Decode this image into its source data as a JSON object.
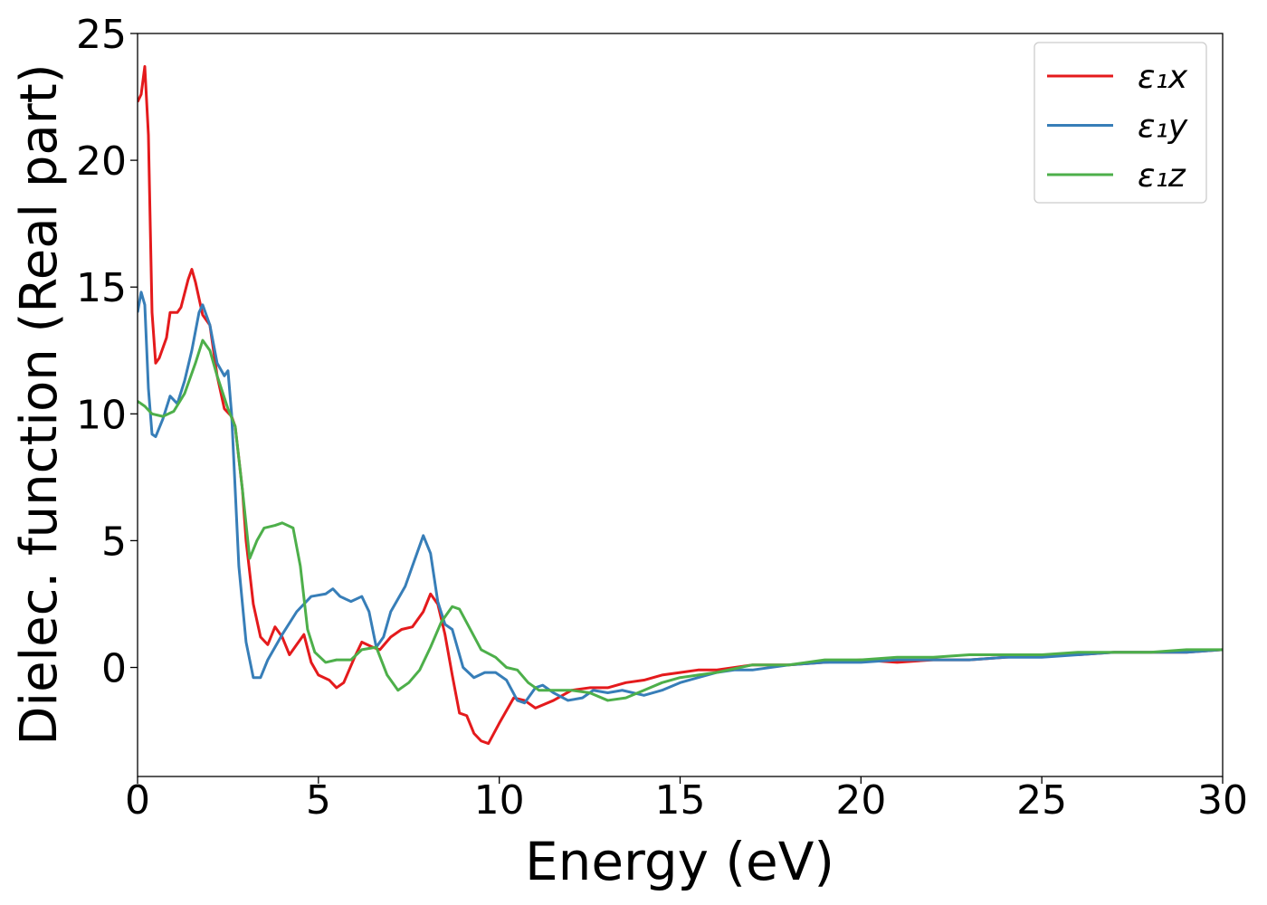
{
  "chart_data": {
    "type": "line",
    "xlabel": "Energy (eV)",
    "ylabel": "Dielec. function (Real part)",
    "xlim": [
      0,
      30
    ],
    "xticks": [
      0,
      5,
      10,
      15,
      20,
      25,
      30
    ],
    "ylim": [
      -4.3,
      25
    ],
    "yticks": [
      0,
      5,
      10,
      15,
      20,
      25
    ],
    "grid": false,
    "legend": "upper right",
    "series": [
      {
        "name": "ε₁x",
        "color": "#e41a1c",
        "x": [
          0,
          0.1,
          0.2,
          0.3,
          0.4,
          0.5,
          0.6,
          0.8,
          0.9,
          1.1,
          1.2,
          1.4,
          1.5,
          1.6,
          1.8,
          2.0,
          2.2,
          2.4,
          2.6,
          2.7,
          2.9,
          3.0,
          3.2,
          3.4,
          3.6,
          3.8,
          4.0,
          4.2,
          4.4,
          4.6,
          4.8,
          5.0,
          5.3,
          5.5,
          5.7,
          6.0,
          6.2,
          6.5,
          6.7,
          7.0,
          7.3,
          7.6,
          7.9,
          8.1,
          8.3,
          8.5,
          8.7,
          8.9,
          9.1,
          9.3,
          9.5,
          9.7,
          10.0,
          10.4,
          10.7,
          11.0,
          11.5,
          12,
          12.5,
          13,
          13.5,
          14,
          14.5,
          15,
          15.5,
          16,
          17,
          18,
          19,
          20,
          21,
          22,
          23,
          24,
          25,
          26,
          27,
          28,
          29,
          30
        ],
        "values": [
          22.3,
          22.6,
          23.7,
          21,
          14,
          12.0,
          12.2,
          13,
          14,
          14,
          14.2,
          15.3,
          15.7,
          15.2,
          13.9,
          13.5,
          11.5,
          10.2,
          9.9,
          9.5,
          7,
          5,
          2.5,
          1.2,
          0.9,
          1.6,
          1.2,
          0.5,
          0.9,
          1.3,
          0.2,
          -0.3,
          -0.5,
          -0.8,
          -0.6,
          0.4,
          1.0,
          0.8,
          0.7,
          1.2,
          1.5,
          1.6,
          2.2,
          2.9,
          2.5,
          1.3,
          -0.3,
          -1.8,
          -1.9,
          -2.6,
          -2.9,
          -3.0,
          -2.2,
          -1.2,
          -1.3,
          -1.6,
          -1.3,
          -0.9,
          -0.8,
          -0.8,
          -0.6,
          -0.5,
          -0.3,
          -0.2,
          -0.1,
          -0.1,
          0.1,
          0.1,
          0.2,
          0.3,
          0.2,
          0.3,
          0.3,
          0.4,
          0.5,
          0.5,
          0.6,
          0.6,
          0.6,
          0.7
        ]
      },
      {
        "name": "ε₁y",
        "color": "#377eb8",
        "x": [
          0,
          0.1,
          0.2,
          0.3,
          0.4,
          0.5,
          0.7,
          0.9,
          1.1,
          1.3,
          1.5,
          1.7,
          1.8,
          2.0,
          2.2,
          2.4,
          2.5,
          2.6,
          2.7,
          2.8,
          3.0,
          3.2,
          3.4,
          3.6,
          4.0,
          4.4,
          4.8,
          5.2,
          5.4,
          5.6,
          5.9,
          6.2,
          6.4,
          6.6,
          6.8,
          7.0,
          7.4,
          7.6,
          7.9,
          8.1,
          8.3,
          8.5,
          8.7,
          9.0,
          9.3,
          9.6,
          9.9,
          10.2,
          10.5,
          10.7,
          11.0,
          11.2,
          11.5,
          11.9,
          12.3,
          12.6,
          13,
          13.4,
          14,
          14.5,
          15,
          15.5,
          16,
          16.5,
          17,
          18,
          19,
          20,
          21,
          22,
          23,
          24,
          25,
          26,
          27,
          28,
          29,
          30
        ],
        "values": [
          14,
          14.8,
          14.3,
          11,
          9.2,
          9.1,
          9.8,
          10.7,
          10.4,
          11.3,
          12.5,
          14.0,
          14.3,
          13.5,
          12,
          11.5,
          11.7,
          10,
          7,
          4,
          1.0,
          -0.4,
          -0.4,
          0.3,
          1.3,
          2.2,
          2.8,
          2.9,
          3.1,
          2.8,
          2.6,
          2.8,
          2.2,
          0.8,
          1.2,
          2.2,
          3.2,
          4.0,
          5.2,
          4.5,
          2.6,
          1.7,
          1.5,
          0.0,
          -0.4,
          -0.2,
          -0.2,
          -0.5,
          -1.3,
          -1.4,
          -0.8,
          -0.7,
          -1.0,
          -1.3,
          -1.2,
          -0.9,
          -1.0,
          -0.9,
          -1.1,
          -0.9,
          -0.6,
          -0.4,
          -0.2,
          -0.1,
          -0.1,
          0.1,
          0.2,
          0.2,
          0.3,
          0.3,
          0.3,
          0.4,
          0.4,
          0.5,
          0.6,
          0.6,
          0.6,
          0.7
        ]
      },
      {
        "name": "ε₁z",
        "color": "#4daf4a",
        "x": [
          0,
          0.2,
          0.4,
          0.7,
          1.0,
          1.3,
          1.6,
          1.8,
          2.0,
          2.2,
          2.5,
          2.7,
          2.9,
          3.1,
          3.3,
          3.5,
          3.8,
          4.0,
          4.3,
          4.5,
          4.7,
          4.9,
          5.2,
          5.5,
          5.9,
          6.2,
          6.6,
          6.9,
          7.2,
          7.5,
          7.8,
          8.1,
          8.4,
          8.7,
          8.9,
          9.2,
          9.5,
          9.9,
          10.2,
          10.5,
          10.8,
          11.1,
          11.5,
          12,
          12.5,
          13,
          13.5,
          14,
          14.5,
          15,
          15.5,
          16,
          17,
          18,
          19,
          20,
          21,
          22,
          23,
          24,
          25,
          26,
          27,
          28,
          29,
          30
        ],
        "values": [
          10.5,
          10.3,
          10.0,
          9.9,
          10.1,
          10.8,
          12.0,
          12.9,
          12.5,
          11.5,
          10.2,
          9.5,
          7.0,
          4.3,
          5.0,
          5.5,
          5.6,
          5.7,
          5.5,
          4.0,
          1.5,
          0.6,
          0.2,
          0.3,
          0.3,
          0.7,
          0.8,
          -0.3,
          -0.9,
          -0.6,
          -0.1,
          0.8,
          1.8,
          2.4,
          2.3,
          1.5,
          0.7,
          0.4,
          0.0,
          -0.1,
          -0.6,
          -0.9,
          -0.9,
          -0.9,
          -1.0,
          -1.3,
          -1.2,
          -0.9,
          -0.6,
          -0.4,
          -0.3,
          -0.2,
          0.1,
          0.1,
          0.3,
          0.3,
          0.4,
          0.4,
          0.5,
          0.5,
          0.5,
          0.6,
          0.6,
          0.6,
          0.7,
          0.7
        ]
      }
    ]
  }
}
